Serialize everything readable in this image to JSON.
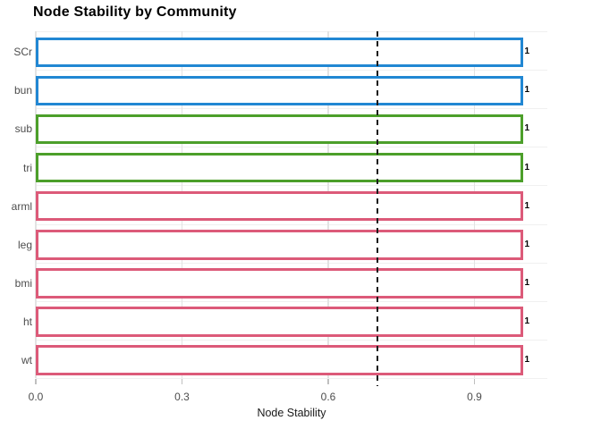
{
  "title": "Node Stability by Community",
  "chart_data": {
    "type": "bar",
    "orientation": "horizontal",
    "title": "Node Stability by Community",
    "xlabel": "Node Stability",
    "ylabel": "",
    "categories": [
      "SCr",
      "bun",
      "sub",
      "tri",
      "arml",
      "leg",
      "bmi",
      "ht",
      "wt"
    ],
    "values": [
      1,
      1,
      1,
      1,
      1,
      1,
      1,
      1,
      1
    ],
    "value_labels": [
      "1",
      "1",
      "1",
      "1",
      "1",
      "1",
      "1",
      "1",
      "1"
    ],
    "bar_colors": [
      "#2187d3",
      "#2187d3",
      "#4c9f2a",
      "#4c9f2a",
      "#dc5a79",
      "#dc5a79",
      "#dc5a79",
      "#dc5a79",
      "#dc5a79"
    ],
    "communities": [
      {
        "name": "community-blue",
        "color": "#2187d3",
        "members": [
          "SCr",
          "bun"
        ]
      },
      {
        "name": "community-green",
        "color": "#4c9f2a",
        "members": [
          "sub",
          "tri"
        ]
      },
      {
        "name": "community-pink",
        "color": "#dc5a79",
        "members": [
          "arml",
          "leg",
          "bmi",
          "ht",
          "wt"
        ]
      }
    ],
    "xticks": [
      0,
      0.3,
      0.6,
      0.9
    ],
    "xtick_labels": [
      "0.0",
      "0.3",
      "0.6",
      "0.9"
    ],
    "xlim": [
      0,
      1.05
    ],
    "reference_line": {
      "value": 0.7,
      "style": "dashed",
      "color": "#1a1a1a"
    },
    "grid": "major-x-minor-y",
    "legend": "none",
    "style": {
      "bar_fill": "#ffffff",
      "grid_major": "#e3e3e3",
      "grid_minor": "#f0f0f0",
      "tick_color": "#bfbfbf",
      "axis_text_color": "#4d4d4d",
      "title_color": "#000000",
      "value_label_color": "#000000"
    }
  }
}
